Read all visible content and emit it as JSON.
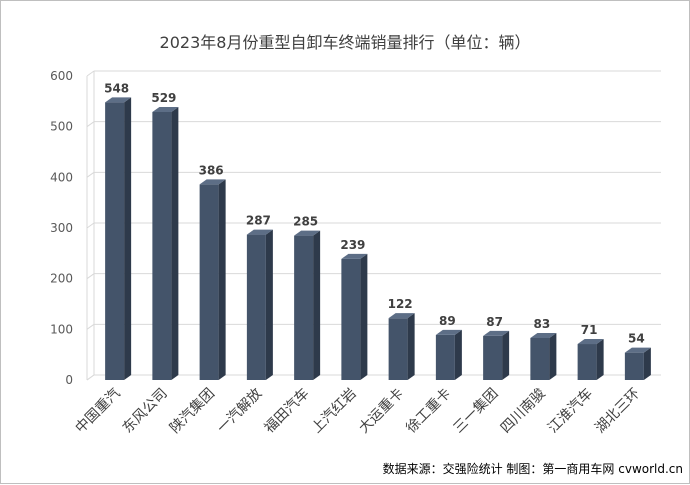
{
  "chart_data": {
    "type": "bar",
    "title": "2023年8月份重型自卸车终端销量排行（单位：辆）",
    "categories": [
      "中国重汽",
      "东风公司",
      "陕汽集团",
      "一汽解放",
      "福田汽车",
      "上汽红岩",
      "大运重卡",
      "徐工重卡",
      "三一集团",
      "四川南骏",
      "江淮汽车",
      "湖北三环"
    ],
    "values": [
      548,
      529,
      386,
      287,
      285,
      239,
      122,
      89,
      87,
      83,
      71,
      54
    ],
    "ylim": [
      0,
      600
    ],
    "yticks": [
      0,
      100,
      200,
      300,
      400,
      500,
      600
    ],
    "grid": true,
    "legend": "none",
    "bar_style": "3d",
    "colors": {
      "bar_front": "#44546a",
      "bar_side": "#2e3a4b",
      "bar_top": "#5d6e86",
      "grid": "#d9d9d9"
    }
  },
  "source_note": "数据来源：交强险统计 制图：第一商用车网 cvworld.cn"
}
